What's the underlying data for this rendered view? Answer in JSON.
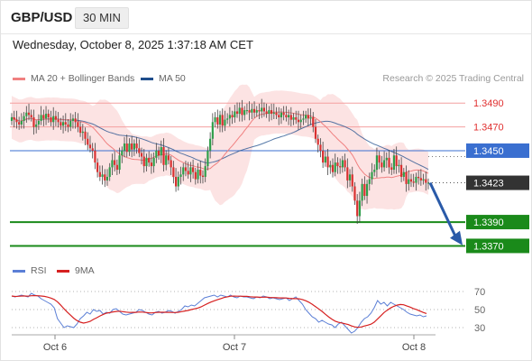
{
  "header": {
    "symbol": "GBP/USD",
    "interval": "30 MIN",
    "timestamp": "Wednesday, October 8, 2025 1:37:18 AM CET"
  },
  "legend": {
    "ma20_label": "MA 20 + Bollinger Bands",
    "ma20_color": "#f08080",
    "ma50_label": "MA 50",
    "ma50_color": "#1f4e8c",
    "copyright": "Research © 2025 Trading Central"
  },
  "rsi_legend": {
    "rsi_label": "RSI",
    "rsi_color": "#5b7fd6",
    "ma9_label": "9MA",
    "ma9_color": "#d62020"
  },
  "chart_data": [
    {
      "type": "candlestick",
      "title": "",
      "x_ticks": [
        "Oct 6",
        "Oct 7",
        "Oct 8"
      ],
      "ylim": [
        1.3362,
        1.35
      ],
      "levels": [
        {
          "value": 1.349,
          "label": "1.3490",
          "kind": "resistance",
          "color": "#f4a0a0",
          "text_color": "#e03030"
        },
        {
          "value": 1.347,
          "label": "1.3470",
          "kind": "resistance",
          "color": "#f4a0a0",
          "text_color": "#e03030"
        },
        {
          "value": 1.345,
          "label": "1.3450",
          "kind": "pivot",
          "color": "#3a6fd0",
          "text_color": "#ffffff",
          "box": "#3a6fd0"
        },
        {
          "value": 1.3423,
          "label": "1.3423",
          "kind": "last-price",
          "color": "#555555",
          "text_color": "#ffffff",
          "box": "#333333"
        },
        {
          "value": 1.339,
          "label": "1.3390",
          "kind": "support",
          "color": "#1a8a1a",
          "text_color": "#ffffff",
          "box": "#1a8a1a"
        },
        {
          "value": 1.337,
          "label": "1.3370",
          "kind": "support",
          "color": "#1a8a1a",
          "text_color": "#ffffff",
          "box": "#1a8a1a"
        }
      ],
      "forecast_arrow": {
        "from": 1.3423,
        "to": 1.3372,
        "color": "#2a5aa8"
      },
      "close": [
        1.3478,
        1.3476,
        1.3474,
        1.3472,
        1.3475,
        1.3479,
        1.3482,
        1.348,
        1.3478,
        1.347,
        1.3472,
        1.3475,
        1.348,
        1.3477,
        1.3481,
        1.3478,
        1.3474,
        1.3479,
        1.3476,
        1.3474,
        1.3471,
        1.3474,
        1.3472,
        1.347,
        1.3475,
        1.3477,
        1.3474,
        1.347,
        1.3465,
        1.3466,
        1.346,
        1.3455,
        1.3452,
        1.345,
        1.344,
        1.3432,
        1.3428,
        1.343,
        1.3425,
        1.3428,
        1.3436,
        1.3442,
        1.3438,
        1.3434,
        1.3446,
        1.345,
        1.3456,
        1.3449,
        1.3456,
        1.3451,
        1.3456,
        1.3452,
        1.3448,
        1.3445,
        1.3437,
        1.3444,
        1.344,
        1.3437,
        1.3444,
        1.345,
        1.3446,
        1.3453,
        1.3438,
        1.3446,
        1.3442,
        1.3436,
        1.3428,
        1.342,
        1.3428,
        1.343,
        1.3436,
        1.3433,
        1.343,
        1.3436,
        1.3432,
        1.3426,
        1.3434,
        1.3429,
        1.3428,
        1.3437,
        1.345,
        1.346,
        1.3474,
        1.3478,
        1.3472,
        1.348,
        1.3471,
        1.3476,
        1.3477,
        1.348,
        1.3478,
        1.3483,
        1.3481,
        1.3486,
        1.348,
        1.3484,
        1.3484,
        1.3482,
        1.3485,
        1.3482,
        1.3484,
        1.3483,
        1.3486,
        1.3483,
        1.3481,
        1.3484,
        1.3481,
        1.3482,
        1.348,
        1.3478,
        1.3482,
        1.348,
        1.3478,
        1.348,
        1.3476,
        1.3478,
        1.3476,
        1.3474,
        1.3476,
        1.3477,
        1.348,
        1.3477,
        1.3478,
        1.347,
        1.346,
        1.3455,
        1.345,
        1.344,
        1.3445,
        1.3436,
        1.3438,
        1.3432,
        1.344,
        1.3437,
        1.3436,
        1.3442,
        1.3436,
        1.3425,
        1.343,
        1.342,
        1.3408,
        1.3395,
        1.3408,
        1.3422,
        1.3412,
        1.3422,
        1.3426,
        1.3432,
        1.3434,
        1.3446,
        1.344,
        1.3436,
        1.3442,
        1.3444,
        1.3436,
        1.3434,
        1.3446,
        1.3437,
        1.3438,
        1.3428,
        1.3432,
        1.3422,
        1.3426,
        1.3424,
        1.3423,
        1.3428,
        1.3427,
        1.3425,
        1.3426,
        1.3423,
        1.3423
      ]
    },
    {
      "type": "line",
      "title": "",
      "series": [
        {
          "name": "RSI",
          "color": "#5b7fd6"
        },
        {
          "name": "9MA",
          "color": "#d62020"
        }
      ],
      "yticks": [
        70,
        50,
        30
      ],
      "ylim": [
        20,
        80
      ],
      "rsi": [
        65,
        64,
        65,
        66,
        65,
        64,
        68,
        66,
        65,
        62,
        60,
        58,
        56,
        52,
        40,
        35,
        30,
        32,
        31,
        30,
        34,
        40,
        43,
        47,
        45,
        50,
        48,
        49,
        45,
        47,
        46,
        50,
        51,
        48,
        45,
        44,
        45,
        46,
        47,
        50,
        49,
        47,
        45,
        44,
        47,
        48,
        46,
        47,
        49,
        48,
        46,
        48,
        50,
        54,
        53,
        55,
        54,
        57,
        60,
        63,
        64,
        65,
        66,
        64,
        66,
        65,
        64,
        66,
        64,
        63,
        65,
        64,
        64,
        63,
        62,
        64,
        63,
        65,
        64,
        62,
        63,
        62,
        61,
        62,
        63,
        60,
        62,
        64,
        60,
        56,
        50,
        46,
        42,
        40,
        36,
        38,
        36,
        34,
        33,
        30,
        34,
        36,
        32,
        28,
        24,
        26,
        30,
        36,
        40,
        42,
        46,
        52,
        60,
        56,
        58,
        54,
        58,
        56,
        54,
        52,
        50,
        47,
        45,
        44,
        43,
        44,
        42,
        43
      ]
    }
  ]
}
